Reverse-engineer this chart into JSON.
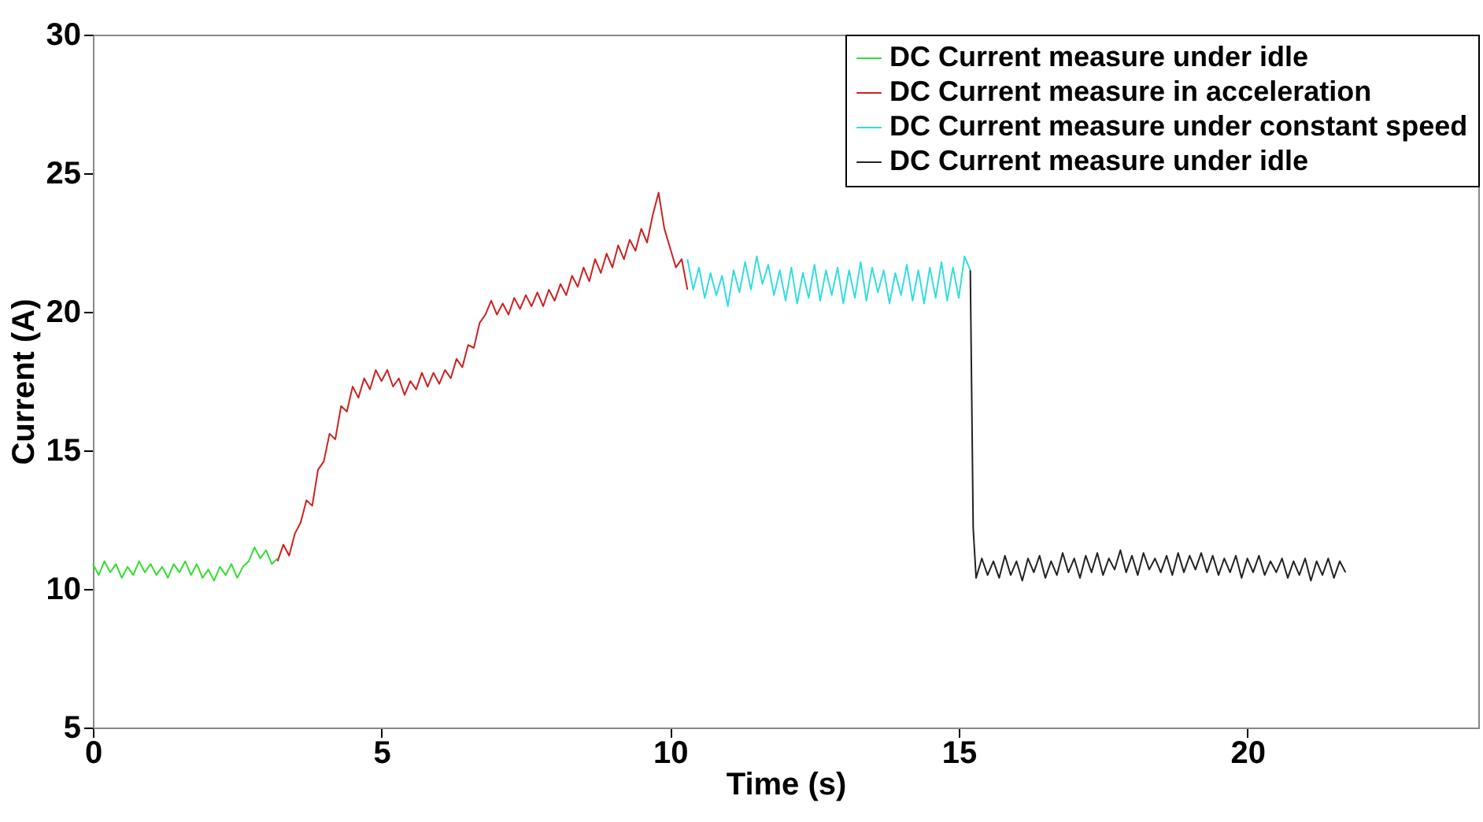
{
  "chart_data": {
    "type": "line",
    "xlabel": "Time (s)",
    "ylabel": "Current (A)",
    "xlim": [
      0,
      24
    ],
    "ylim": [
      5,
      30
    ],
    "xticks": [
      0,
      5,
      10,
      15,
      20
    ],
    "yticks": [
      5,
      10,
      15,
      20,
      25,
      30
    ],
    "grid": false,
    "legend": "top right",
    "series": [
      {
        "name": "DC Current measure under idle",
        "color": "#33dd33",
        "x": [
          0,
          0.1,
          0.2,
          0.3,
          0.4,
          0.5,
          0.6,
          0.7,
          0.8,
          0.9,
          1,
          1.1,
          1.2,
          1.3,
          1.4,
          1.5,
          1.6,
          1.7,
          1.8,
          1.9,
          2,
          2.1,
          2.2,
          2.3,
          2.4,
          2.5,
          2.6,
          2.7,
          2.8,
          2.9,
          3,
          3.1,
          3.2
        ],
        "values": [
          10.9,
          10.5,
          11.0,
          10.6,
          10.9,
          10.4,
          10.8,
          10.5,
          11.0,
          10.6,
          10.9,
          10.5,
          10.8,
          10.4,
          10.9,
          10.6,
          11.0,
          10.5,
          10.9,
          10.4,
          10.7,
          10.3,
          10.8,
          10.5,
          10.9,
          10.4,
          10.8,
          11.0,
          11.5,
          11.1,
          11.4,
          10.9,
          11.1
        ]
      },
      {
        "name": "DC Current measure in acceleration",
        "color": "#cc2222",
        "x": [
          3.2,
          3.3,
          3.4,
          3.5,
          3.6,
          3.7,
          3.8,
          3.9,
          4,
          4.1,
          4.2,
          4.3,
          4.4,
          4.5,
          4.6,
          4.7,
          4.8,
          4.9,
          5,
          5.1,
          5.2,
          5.3,
          5.4,
          5.5,
          5.6,
          5.7,
          5.8,
          5.9,
          6,
          6.1,
          6.2,
          6.3,
          6.4,
          6.5,
          6.6,
          6.7,
          6.8,
          6.9,
          7,
          7.1,
          7.2,
          7.3,
          7.4,
          7.5,
          7.6,
          7.7,
          7.8,
          7.9,
          8,
          8.1,
          8.2,
          8.3,
          8.4,
          8.5,
          8.6,
          8.7,
          8.8,
          8.9,
          9,
          9.1,
          9.2,
          9.3,
          9.4,
          9.5,
          9.6,
          9.7,
          9.8,
          9.9,
          10,
          10.1,
          10.2,
          10.3
        ],
        "values": [
          11.0,
          11.6,
          11.2,
          12.0,
          12.4,
          13.2,
          13.0,
          14.3,
          14.6,
          15.6,
          15.4,
          16.6,
          16.4,
          17.3,
          16.9,
          17.6,
          17.2,
          17.9,
          17.5,
          17.9,
          17.3,
          17.6,
          17.0,
          17.5,
          17.2,
          17.8,
          17.3,
          17.8,
          17.4,
          17.9,
          17.6,
          18.3,
          18.0,
          18.8,
          18.7,
          19.6,
          19.9,
          20.4,
          19.9,
          20.3,
          19.9,
          20.5,
          20.1,
          20.6,
          20.2,
          20.7,
          20.2,
          20.8,
          20.4,
          21.0,
          20.6,
          21.3,
          20.9,
          21.6,
          21.1,
          21.9,
          21.4,
          22.1,
          21.6,
          22.4,
          21.9,
          22.6,
          22.2,
          23.0,
          22.5,
          23.5,
          24.3,
          23.0,
          22.3,
          21.6,
          21.9,
          20.8
        ]
      },
      {
        "name": "DC Current measure under constant speed",
        "color": "#33dddd",
        "x": [
          10.3,
          10.4,
          10.5,
          10.6,
          10.7,
          10.8,
          10.9,
          11,
          11.1,
          11.2,
          11.3,
          11.4,
          11.5,
          11.6,
          11.7,
          11.8,
          11.9,
          12,
          12.1,
          12.2,
          12.3,
          12.4,
          12.5,
          12.6,
          12.7,
          12.8,
          12.9,
          13,
          13.1,
          13.2,
          13.3,
          13.4,
          13.5,
          13.6,
          13.7,
          13.8,
          13.9,
          14,
          14.1,
          14.2,
          14.3,
          14.4,
          14.5,
          14.6,
          14.7,
          14.8,
          14.9,
          15,
          15.1,
          15.2
        ],
        "values": [
          21.9,
          20.8,
          21.6,
          20.5,
          21.4,
          20.6,
          21.3,
          20.2,
          21.5,
          20.7,
          21.8,
          20.8,
          22.0,
          21.0,
          21.7,
          20.6,
          21.5,
          20.4,
          21.6,
          20.3,
          21.4,
          20.5,
          21.7,
          20.4,
          21.5,
          20.6,
          21.6,
          20.3,
          21.5,
          20.5,
          21.8,
          20.4,
          21.6,
          20.7,
          21.5,
          20.3,
          21.4,
          20.6,
          21.7,
          20.4,
          21.5,
          20.3,
          21.6,
          20.5,
          21.8,
          20.4,
          21.6,
          20.5,
          22.0,
          21.5
        ]
      },
      {
        "name": "DC Current measure under idle",
        "color": "#222222",
        "x": [
          15.2,
          15.25,
          15.3,
          15.4,
          15.5,
          15.6,
          15.7,
          15.8,
          15.9,
          16,
          16.1,
          16.2,
          16.3,
          16.4,
          16.5,
          16.6,
          16.7,
          16.8,
          16.9,
          17,
          17.1,
          17.2,
          17.3,
          17.4,
          17.5,
          17.6,
          17.7,
          17.8,
          17.9,
          18,
          18.1,
          18.2,
          18.3,
          18.4,
          18.5,
          18.6,
          18.7,
          18.8,
          18.9,
          19,
          19.1,
          19.2,
          19.3,
          19.4,
          19.5,
          19.6,
          19.7,
          19.8,
          19.9,
          20,
          20.1,
          20.2,
          20.3,
          20.4,
          20.5,
          20.6,
          20.7,
          20.8,
          20.9,
          21,
          21.1,
          21.2,
          21.3,
          21.4,
          21.5,
          21.6,
          21.7
        ],
        "values": [
          21.5,
          12.2,
          10.4,
          11.1,
          10.5,
          11.0,
          10.4,
          11.2,
          10.5,
          11.0,
          10.3,
          11.1,
          10.6,
          11.2,
          10.4,
          11.0,
          10.5,
          11.3,
          10.6,
          11.1,
          10.4,
          11.2,
          10.6,
          11.3,
          10.5,
          11.1,
          10.7,
          11.4,
          10.6,
          11.2,
          10.5,
          11.3,
          10.7,
          11.1,
          10.6,
          11.2,
          10.5,
          11.3,
          10.6,
          11.2,
          10.7,
          11.3,
          10.6,
          11.2,
          10.5,
          11.1,
          10.6,
          11.2,
          10.4,
          11.1,
          10.6,
          11.2,
          10.5,
          11.0,
          10.6,
          11.1,
          10.4,
          11.0,
          10.5,
          11.1,
          10.3,
          11.0,
          10.5,
          11.1,
          10.4,
          11.0,
          10.6
        ]
      }
    ]
  }
}
